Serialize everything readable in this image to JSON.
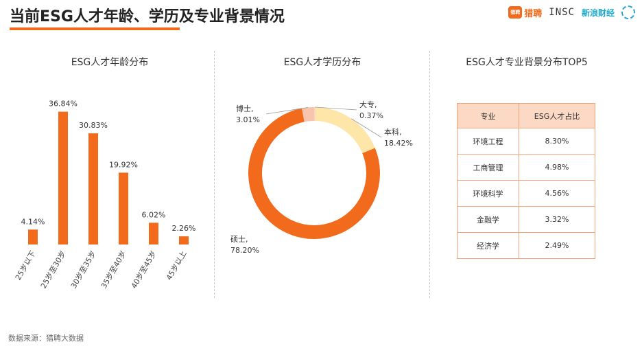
{
  "title": "当前ESG人才年龄、学历及专业背景情况",
  "logos": {
    "liepin_badge": "猎聘",
    "liepin": "猎聘",
    "insc": "INSC",
    "sina": "新浪财经"
  },
  "source": "数据来源：猎聘大数据",
  "chart_data": [
    {
      "type": "bar",
      "title": "ESG人才年龄分布",
      "categories": [
        "25岁以下",
        "25岁至30岁",
        "30岁至35岁",
        "35岁至40岁",
        "40岁至45岁",
        "45岁以上"
      ],
      "values": [
        4.14,
        36.84,
        30.83,
        19.92,
        6.02,
        2.26
      ],
      "value_labels": [
        "4.14%",
        "36.84%",
        "30.83%",
        "19.92%",
        "6.02%",
        "2.26%"
      ],
      "color": "#f26a1b",
      "ylim": [
        0,
        40
      ]
    },
    {
      "type": "pie",
      "title": "ESG人才学历分布",
      "slices": [
        {
          "name": "硕士,",
          "value": 78.2,
          "label": "78.20%",
          "color": "#f26a1b"
        },
        {
          "name": "博士,",
          "value": 3.01,
          "label": "3.01%",
          "color": "#f7c4ad"
        },
        {
          "name": "大专,",
          "value": 0.37,
          "label": "0.37%",
          "color": "#f9d6c2"
        },
        {
          "name": "本科,",
          "value": 18.42,
          "label": "18.42%",
          "color": "#fde6a8"
        }
      ]
    },
    {
      "type": "table",
      "title": "ESG人才专业背景分布TOP5",
      "columns": [
        "专业",
        "ESG人才占比"
      ],
      "rows": [
        [
          "环境工程",
          "8.30%"
        ],
        [
          "工商管理",
          "4.98%"
        ],
        [
          "环境科学",
          "4.56%"
        ],
        [
          "金融学",
          "3.32%"
        ],
        [
          "经济学",
          "2.49%"
        ]
      ]
    }
  ]
}
